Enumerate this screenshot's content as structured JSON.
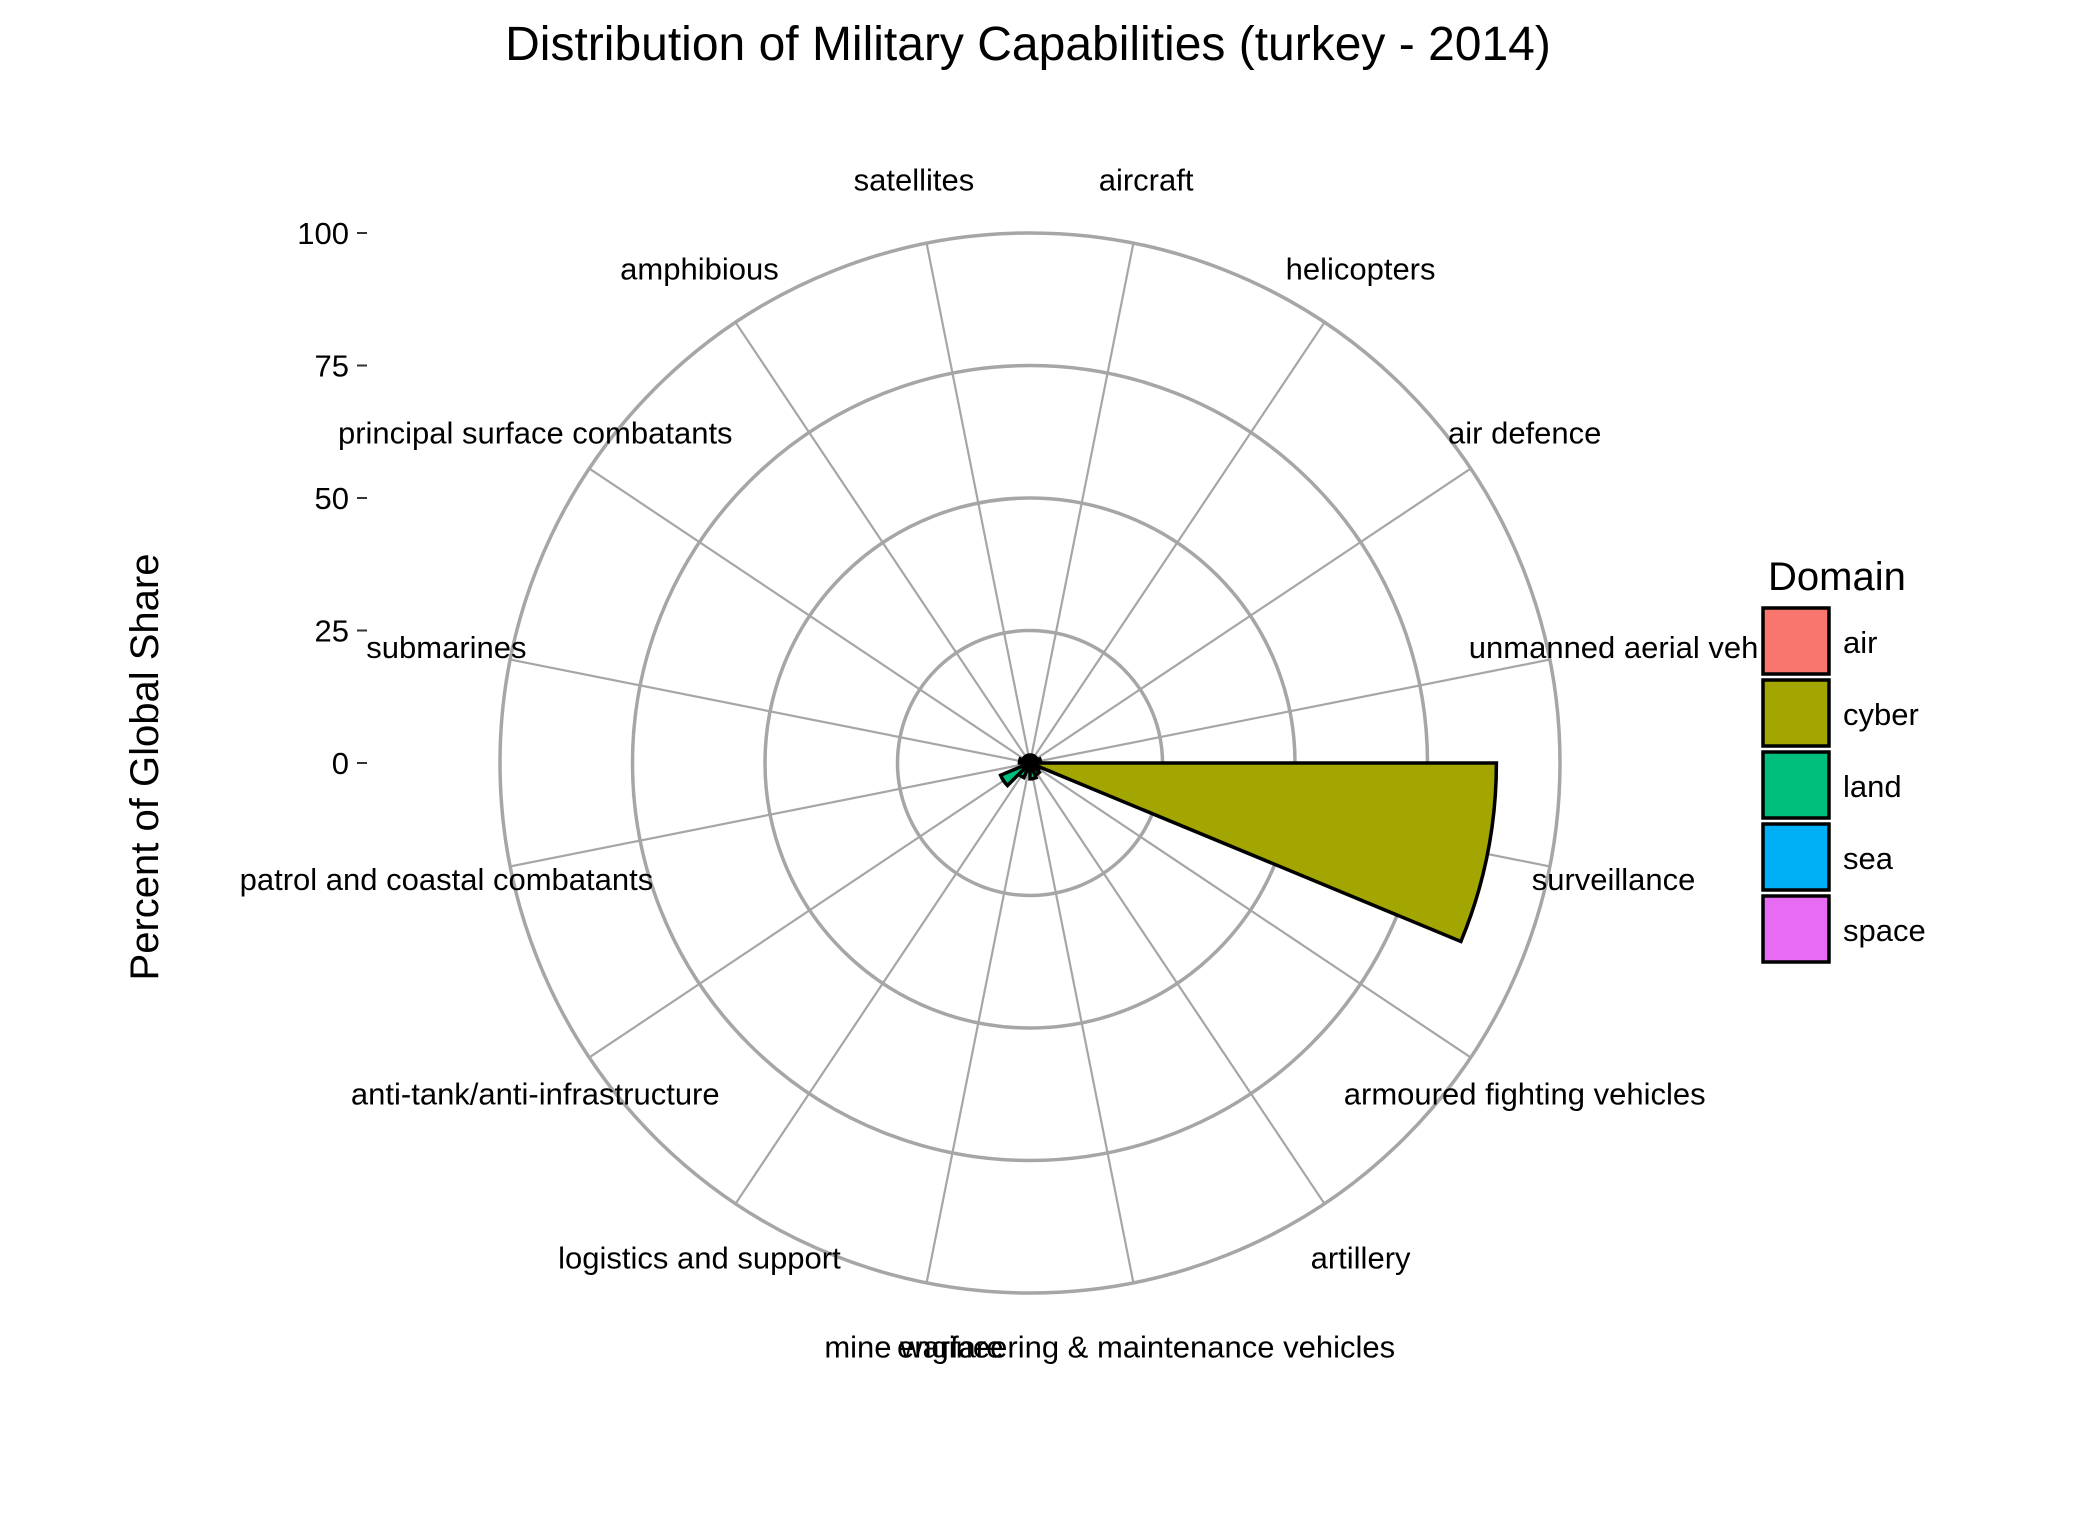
{
  "chart_data": {
    "type": "bar",
    "coord": "polar",
    "title": "Distribution of Military Capabilities (turkey - 2014)",
    "xlabel": "",
    "ylabel": "Percent of Global Share",
    "ylim": [
      0,
      100
    ],
    "y_ticks": [
      0,
      25,
      50,
      75,
      100
    ],
    "legend": {
      "title": "Domain",
      "position": "right",
      "entries": [
        {
          "name": "air",
          "color": "#F8766D"
        },
        {
          "name": "cyber",
          "color": "#A3A500"
        },
        {
          "name": "land",
          "color": "#00BF7D"
        },
        {
          "name": "sea",
          "color": "#00B0F6"
        },
        {
          "name": "space",
          "color": "#E76BF3"
        }
      ]
    },
    "categories": [
      "aircraft",
      "helicopters",
      "air defence",
      "unmanned aerial vehicles",
      "surveillance",
      "armoured fighting vehicles",
      "artillery",
      "engineering & maintenance vehicles",
      "mine warfare",
      "logistics and support",
      "anti-tank/anti-infrastructure",
      "patrol and coastal combatants",
      "submarines",
      "principal surface combatants",
      "amphibious",
      "satellites"
    ],
    "category_labels": [
      "aircraft",
      "helicopters",
      "air defence",
      "unmanned aerial veh",
      "surveillance",
      "armoured fighting vehicles",
      "artillery",
      "engineering & maintenance vehicles",
      "mine warfare",
      "logistics and support",
      "anti-tank/anti-infrastructure",
      "patrol and coastal combatants",
      "submarines",
      "principal surface combatants",
      "amphibious",
      "satellites"
    ],
    "domains": [
      "air",
      "air",
      "air",
      "air",
      "cyber",
      "land",
      "land",
      "land",
      "sea",
      "land",
      "land",
      "sea",
      "sea",
      "sea",
      "sea",
      "space"
    ],
    "values": [
      1.5,
      1.5,
      1.5,
      2.0,
      88.0,
      2.0,
      2.5,
      3.0,
      1.5,
      3.0,
      6.0,
      1.0,
      2.0,
      1.0,
      1.5,
      0.5
    ]
  }
}
